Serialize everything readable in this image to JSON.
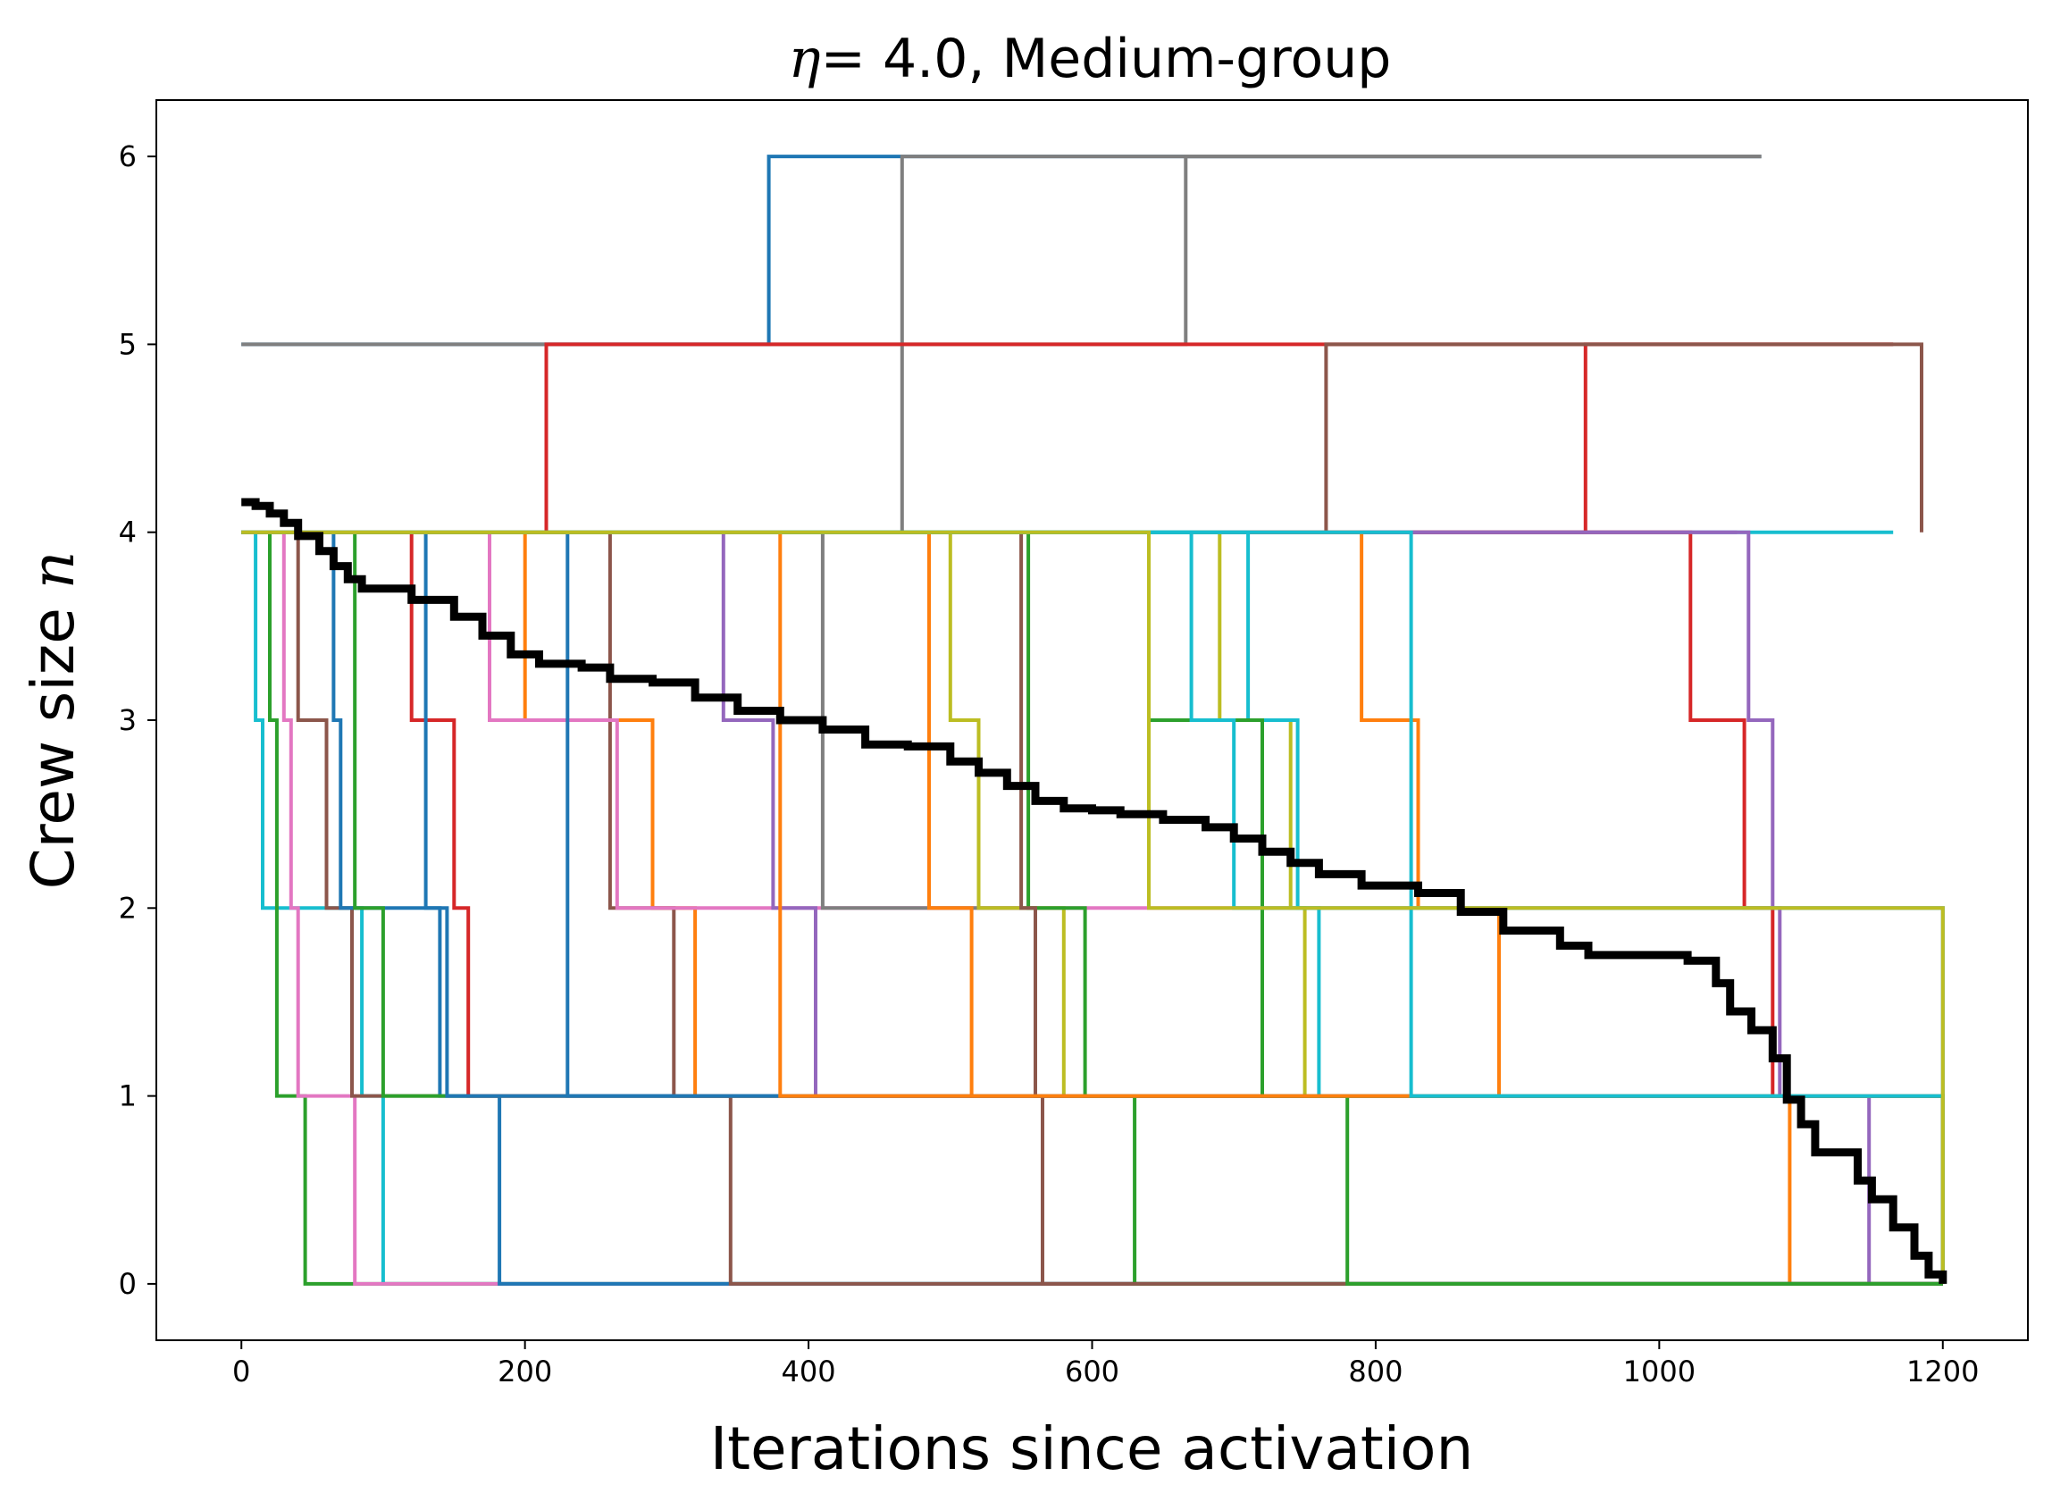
{
  "chart_data": {
    "type": "line",
    "title": {
      "eta_symbol": "η",
      "eta_value": "= 4.0, Medium-group"
    },
    "xlabel": "Iterations since activation",
    "ylabel": {
      "text": "Crew size ",
      "symbol": "n"
    },
    "xlim": [
      -60,
      1260
    ],
    "ylim": [
      -0.3,
      6.3
    ],
    "xticks": [
      0,
      200,
      400,
      600,
      800,
      1000,
      1200
    ],
    "yticks": [
      0,
      1,
      2,
      3,
      4,
      5,
      6
    ],
    "grid": false,
    "legend": "none",
    "colors": {
      "blue": "#1f77b4",
      "orange": "#ff7f0e",
      "green": "#2ca02c",
      "red": "#d62728",
      "purple": "#9467bd",
      "brown": "#8c564b",
      "pink": "#e377c2",
      "gray": "#7f7f7f",
      "olive": "#bcbd22",
      "cyan": "#17becf",
      "mean": "#000000"
    },
    "series": [
      {
        "color": "blue",
        "x": [
          0,
          372,
          1072
        ],
        "y": [
          5,
          6,
          6
        ]
      },
      {
        "color": "gray",
        "x": [
          0,
          466,
          1072
        ],
        "y": [
          4,
          6,
          6
        ]
      },
      {
        "color": "gray",
        "x": [
          0,
          666,
          1072
        ],
        "y": [
          5,
          6,
          6
        ]
      },
      {
        "color": "red",
        "x": [
          0,
          215,
          1165
        ],
        "y": [
          4,
          5,
          5
        ]
      },
      {
        "color": "red",
        "x": [
          0,
          948,
          1165
        ],
        "y": [
          4,
          5,
          5
        ]
      },
      {
        "color": "brown",
        "x": [
          0,
          765,
          1185
        ],
        "y": [
          4,
          5,
          4
        ]
      },
      {
        "color": "cyan",
        "x": [
          0,
          1165
        ],
        "y": [
          4,
          4
        ]
      },
      {
        "color": "purple",
        "x": [
          0,
          1055
        ],
        "y": [
          4,
          4
        ]
      },
      {
        "color": "red",
        "x": [
          0,
          1022,
          1060,
          1080,
          1113
        ],
        "y": [
          4,
          3,
          2,
          1,
          1
        ]
      },
      {
        "color": "purple",
        "x": [
          0,
          1055,
          1063,
          1080,
          1085,
          1148,
          1200
        ],
        "y": [
          4,
          4,
          3,
          2,
          1,
          0,
          0
        ]
      },
      {
        "color": "orange",
        "x": [
          0,
          790,
          830,
          887,
          1092,
          1200
        ],
        "y": [
          4,
          3,
          2,
          1,
          0,
          0
        ]
      },
      {
        "color": "cyan",
        "x": [
          0,
          10,
          15,
          85,
          100,
          1200
        ],
        "y": [
          4,
          3,
          2,
          1,
          0,
          0
        ]
      },
      {
        "color": "green",
        "x": [
          0,
          20,
          25,
          45,
          1200
        ],
        "y": [
          4,
          3,
          1,
          0,
          0
        ]
      },
      {
        "color": "pink",
        "x": [
          0,
          30,
          35,
          40,
          80,
          1200
        ],
        "y": [
          4,
          3,
          2,
          1,
          0,
          0
        ]
      },
      {
        "color": "brown",
        "x": [
          0,
          40,
          60,
          78,
          1200
        ],
        "y": [
          4,
          3,
          2,
          1,
          0
        ]
      },
      {
        "color": "blue",
        "x": [
          0,
          65,
          70,
          140,
          182,
          1200
        ],
        "y": [
          4,
          3,
          2,
          1,
          0,
          0
        ]
      },
      {
        "color": "green",
        "x": [
          0,
          80,
          100,
          1200
        ],
        "y": [
          4,
          2,
          1,
          0
        ]
      },
      {
        "color": "red",
        "x": [
          0,
          120,
          150,
          160,
          1200
        ],
        "y": [
          4,
          3,
          2,
          1,
          0
        ]
      },
      {
        "color": "orange",
        "x": [
          0,
          200,
          290,
          320,
          1200
        ],
        "y": [
          4,
          3,
          2,
          1,
          0
        ]
      },
      {
        "color": "blue",
        "x": [
          0,
          130,
          145,
          1200
        ],
        "y": [
          4,
          2,
          1,
          0
        ]
      },
      {
        "color": "brown",
        "x": [
          0,
          260,
          305,
          345,
          1200
        ],
        "y": [
          4,
          2,
          1,
          0,
          0
        ]
      },
      {
        "color": "pink",
        "x": [
          0,
          175,
          265,
          1200
        ],
        "y": [
          4,
          3,
          2,
          0
        ]
      },
      {
        "color": "purple",
        "x": [
          0,
          340,
          375,
          405,
          1200
        ],
        "y": [
          4,
          3,
          2,
          1,
          0
        ]
      },
      {
        "color": "gray",
        "x": [
          0,
          410,
          560,
          1200
        ],
        "y": [
          4,
          2,
          1,
          0
        ]
      },
      {
        "color": "olive",
        "x": [
          0,
          500,
          520,
          580,
          780,
          1200
        ],
        "y": [
          4,
          3,
          2,
          1,
          1,
          0
        ]
      },
      {
        "color": "green",
        "x": [
          0,
          555,
          595,
          630,
          1200
        ],
        "y": [
          4,
          2,
          1,
          0,
          0
        ]
      },
      {
        "color": "orange",
        "x": [
          0,
          485,
          515,
          1200
        ],
        "y": [
          4,
          2,
          1,
          0
        ]
      },
      {
        "color": "olive",
        "x": [
          0,
          690,
          740,
          750,
          1200
        ],
        "y": [
          4,
          3,
          2,
          1,
          0
        ]
      },
      {
        "color": "cyan",
        "x": [
          0,
          710,
          745,
          760,
          1200
        ],
        "y": [
          4,
          3,
          2,
          1,
          0
        ]
      },
      {
        "color": "brown",
        "x": [
          0,
          550,
          560,
          565,
          1200
        ],
        "y": [
          4,
          2,
          1,
          0,
          0
        ]
      },
      {
        "color": "green",
        "x": [
          0,
          640,
          720,
          780,
          1200
        ],
        "y": [
          4,
          3,
          1,
          0,
          0
        ]
      },
      {
        "color": "cyan",
        "x": [
          0,
          670,
          700,
          1200
        ],
        "y": [
          4,
          3,
          2,
          1
        ]
      },
      {
        "color": "blue",
        "x": [
          0,
          230,
          1200
        ],
        "y": [
          4,
          1,
          0
        ]
      },
      {
        "color": "orange",
        "x": [
          0,
          380,
          1200
        ],
        "y": [
          4,
          1,
          0
        ]
      },
      {
        "color": "cyan",
        "x": [
          0,
          825,
          920,
          1200
        ],
        "y": [
          4,
          1,
          1,
          0
        ]
      },
      {
        "color": "olive",
        "x": [
          0,
          640,
          1200
        ],
        "y": [
          4,
          2,
          0
        ]
      }
    ],
    "mean_series": {
      "color": "mean",
      "x": [
        0,
        10,
        20,
        30,
        40,
        55,
        65,
        75,
        85,
        95,
        120,
        150,
        170,
        190,
        210,
        240,
        260,
        290,
        320,
        350,
        380,
        410,
        440,
        470,
        500,
        520,
        540,
        560,
        580,
        600,
        620,
        650,
        680,
        700,
        720,
        740,
        760,
        790,
        830,
        860,
        890,
        930,
        950,
        980,
        1020,
        1040,
        1050,
        1065,
        1080,
        1090,
        1100,
        1110,
        1140,
        1150,
        1165,
        1180,
        1190,
        1200
      ],
      "y": [
        4.16,
        4.14,
        4.1,
        4.05,
        3.98,
        3.9,
        3.82,
        3.75,
        3.7,
        3.7,
        3.64,
        3.55,
        3.45,
        3.35,
        3.3,
        3.28,
        3.22,
        3.2,
        3.12,
        3.05,
        3.0,
        2.95,
        2.87,
        2.86,
        2.78,
        2.72,
        2.65,
        2.57,
        2.53,
        2.52,
        2.5,
        2.47,
        2.43,
        2.37,
        2.3,
        2.24,
        2.18,
        2.12,
        2.08,
        1.98,
        1.88,
        1.8,
        1.75,
        1.75,
        1.72,
        1.6,
        1.45,
        1.35,
        1.2,
        0.98,
        0.85,
        0.7,
        0.55,
        0.45,
        0.3,
        0.15,
        0.05,
        0.0
      ]
    }
  }
}
